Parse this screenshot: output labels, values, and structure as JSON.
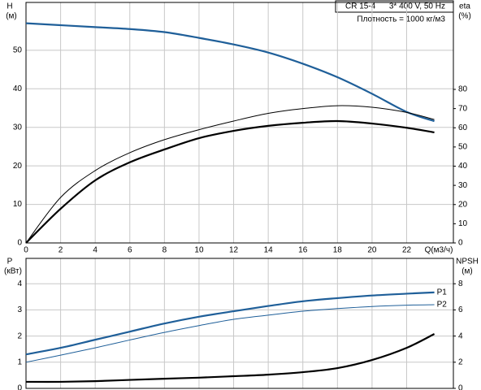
{
  "chart_data": [
    {
      "type": "line",
      "title": "CR 15-4",
      "subtitle": "3* 400 V, 50 Hz",
      "annotation": "Плотность = 1000 кг/м3",
      "xlabel": "Q(м3/ч)",
      "ylabel": "H",
      "yunit": "(м)",
      "y2label": "eta",
      "y2unit": "(%)",
      "x": [
        0,
        2,
        4,
        6,
        8,
        10,
        12,
        14,
        16,
        18,
        20,
        22,
        23.6
      ],
      "xlim": [
        0,
        24.7
      ],
      "xticks": [
        0,
        2,
        4,
        6,
        8,
        10,
        12,
        14,
        16,
        18,
        20,
        22
      ],
      "ylim": [
        0,
        62.4
      ],
      "yticks": [
        0,
        10,
        20,
        30,
        40,
        50
      ],
      "y2lim": [
        0,
        125.3
      ],
      "y2ticks": [
        0,
        10,
        20,
        30,
        40,
        50,
        60,
        70,
        80
      ],
      "grid": true,
      "series": [
        {
          "color": "#1f5f99",
          "width": 2.2,
          "values": [
            57,
            56.5,
            56,
            55.5,
            54.7,
            53.2,
            51.5,
            49.4,
            46.5,
            43,
            38.7,
            34,
            31.6
          ]
        },
        {
          "color": "#000000",
          "width": 1,
          "axis": "y2",
          "values": [
            0,
            23.7,
            37.7,
            47,
            53.8,
            59,
            63.5,
            67.5,
            70,
            71.5,
            70.7,
            68,
            64.3
          ]
        },
        {
          "color": "#000000",
          "width": 2.2,
          "axis": "y2",
          "values": [
            0,
            17.8,
            32.6,
            42,
            48.7,
            54.6,
            58.4,
            61,
            62.6,
            63.5,
            62.2,
            60,
            57.6
          ]
        }
      ]
    },
    {
      "type": "line",
      "ylabel": "P",
      "yunit": "(кВт)",
      "y2label": "NPSH",
      "y2unit": "(м)",
      "x": [
        0,
        2,
        4,
        6,
        8,
        10,
        12,
        14,
        16,
        18,
        20,
        22,
        23.6
      ],
      "xlim": [
        0,
        24.7
      ],
      "xticks": [
        0,
        2,
        4,
        6,
        8,
        10,
        12,
        14,
        16,
        18,
        20,
        22
      ],
      "ylim": [
        0,
        4.97
      ],
      "yticks": [
        0,
        1,
        2,
        3,
        4
      ],
      "y2lim": [
        0,
        9.94
      ],
      "y2ticks": [
        0,
        2,
        4,
        6,
        8
      ],
      "grid": true,
      "series": [
        {
          "name": "P1",
          "color": "#1f5f99",
          "width": 2.2,
          "values": [
            1.3,
            1.55,
            1.86,
            2.17,
            2.48,
            2.74,
            2.95,
            3.15,
            3.33,
            3.45,
            3.55,
            3.62,
            3.67
          ]
        },
        {
          "name": "P2",
          "color": "#1f5f99",
          "width": 1,
          "values": [
            1.0,
            1.27,
            1.55,
            1.85,
            2.14,
            2.4,
            2.64,
            2.8,
            2.95,
            3.05,
            3.13,
            3.18,
            3.2
          ]
        },
        {
          "color": "#000000",
          "width": 2.2,
          "axis": "y2",
          "values": [
            0.5,
            0.5,
            0.55,
            0.65,
            0.74,
            0.82,
            0.93,
            1.05,
            1.24,
            1.55,
            2.17,
            3.1,
            4.16
          ]
        }
      ]
    }
  ]
}
